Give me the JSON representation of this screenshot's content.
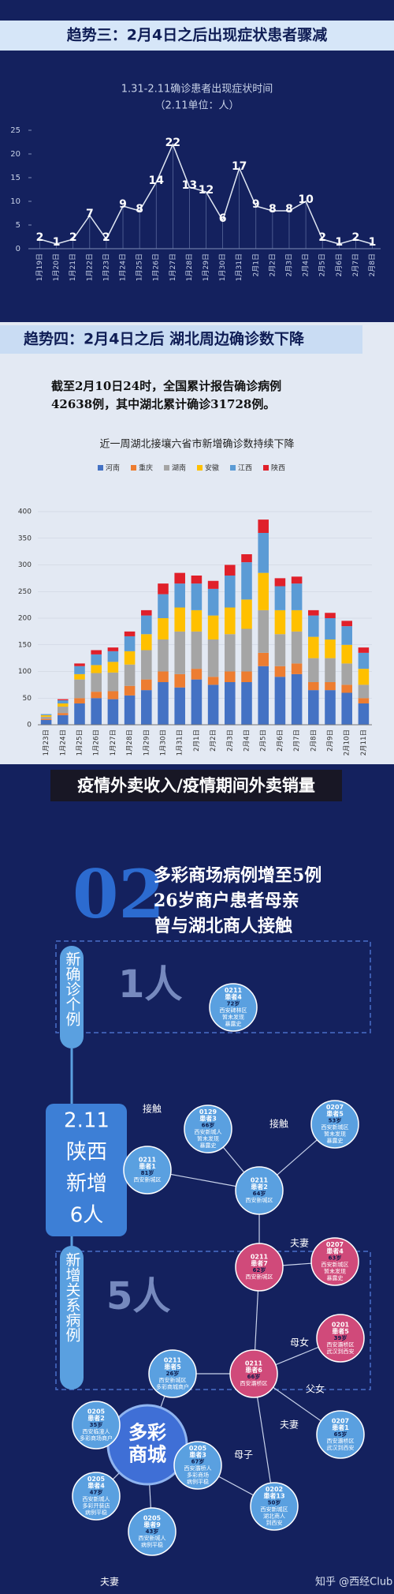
{
  "headers": [
    "趋势三：2月4日之后出现症状患者骤减",
    "趋势四：2月4日之后 湖北周边确诊数下降"
  ],
  "statement": [
    "截至2月10日24时，全国累计报告确诊病例",
    "42638例，其中湖北累计确诊31728例。"
  ],
  "chart_data": [
    {
      "type": "line",
      "title": "1.31-2.11确诊患者出现症状时间",
      "subtitle": "（2.11单位：人）",
      "categories": [
        "1月19日",
        "1月20日",
        "1月21日",
        "1月22日",
        "1月23日",
        "1月24日",
        "1月25日",
        "1月26日",
        "1月27日",
        "1月28日",
        "1月29日",
        "1月30日",
        "1月31日",
        "2月1日",
        "2月2日",
        "2月3日",
        "2月4日",
        "2月5日",
        "2月6日",
        "2月7日",
        "2月8日"
      ],
      "values": [
        2,
        1,
        2,
        7,
        2,
        9,
        8,
        14,
        22,
        13,
        12,
        6,
        17,
        9,
        8,
        8,
        10,
        2,
        1,
        2,
        1
      ],
      "color": "#dfe6f2",
      "ylim": [
        0,
        25
      ],
      "yticks": [
        0,
        5,
        10,
        15,
        20,
        25
      ]
    },
    {
      "type": "stacked_bar",
      "title": "近一周湖北接壤六省市新增确诊数持续下降",
      "categories": [
        "1月23日",
        "1月24日",
        "1月25日",
        "1月26日",
        "1月27日",
        "1月28日",
        "1月29日",
        "1月30日",
        "1月31日",
        "2月1日",
        "2月2日",
        "2月3日",
        "2月4日",
        "2月5日",
        "2月6日",
        "2月7日",
        "2月8日",
        "2月9日",
        "2月10日",
        "2月11日"
      ],
      "series": [
        {
          "name": "河南",
          "color": "#4472c4",
          "values": [
            9,
            18,
            40,
            50,
            48,
            55,
            65,
            80,
            70,
            85,
            75,
            80,
            80,
            110,
            90,
            95,
            65,
            65,
            60,
            40
          ]
        },
        {
          "name": "重庆",
          "color": "#ed7d31",
          "values": [
            2,
            4,
            10,
            12,
            15,
            18,
            20,
            20,
            25,
            20,
            15,
            20,
            20,
            25,
            20,
            20,
            15,
            15,
            15,
            10
          ]
        },
        {
          "name": "湖南",
          "color": "#a5a5a5",
          "values": [
            4,
            12,
            35,
            35,
            35,
            40,
            55,
            60,
            80,
            70,
            70,
            70,
            80,
            80,
            60,
            60,
            45,
            45,
            40,
            25
          ]
        },
        {
          "name": "安徽",
          "color": "#ffc000",
          "values": [
            3,
            6,
            10,
            15,
            20,
            25,
            30,
            40,
            45,
            40,
            45,
            50,
            55,
            70,
            45,
            40,
            40,
            35,
            35,
            30
          ]
        },
        {
          "name": "江西",
          "color": "#5b9bd5",
          "values": [
            2,
            6,
            15,
            20,
            20,
            28,
            35,
            45,
            45,
            50,
            50,
            60,
            70,
            75,
            45,
            50,
            40,
            40,
            35,
            30
          ]
        },
        {
          "name": "陕西",
          "color": "#e0202a",
          "values": [
            0,
            2,
            5,
            8,
            7,
            9,
            10,
            20,
            20,
            15,
            15,
            20,
            15,
            25,
            15,
            13,
            10,
            10,
            10,
            10
          ]
        }
      ],
      "ylim": [
        0,
        400
      ],
      "yticks": [
        0,
        50,
        100,
        150,
        200,
        250,
        300,
        350,
        400
      ],
      "legend": "top"
    }
  ],
  "banner": "疫情外卖收入/疫情期间外卖销量",
  "part2": {
    "number": "02",
    "headline": [
      "多彩商场病例增至5例",
      "26岁商户患者母亲",
      "曾与湖北商人接触"
    ],
    "new_case": "新确诊个例",
    "one": "1人",
    "total": [
      "2.11",
      "陕西",
      "新增",
      "6人"
    ],
    "related": "新增关系病例",
    "five": "5人",
    "mall": [
      "多彩",
      "商城"
    ],
    "nodes": [
      {
        "color": "#5aa0e0",
        "lines": [
          "0211",
          "患者4",
          "72岁",
          "西安碑林区",
          "暂未发现",
          "暴露史"
        ]
      },
      {
        "color": "#5aa0e0",
        "lines": [
          "0129",
          "患者3",
          "66岁",
          "西安新城人",
          "暂未发现",
          "暴露史"
        ]
      },
      {
        "color": "#5aa0e0",
        "lines": [
          "0211",
          "患者1",
          "81岁",
          "西安新城区"
        ]
      },
      {
        "color": "#5aa0e0",
        "lines": [
          "0207",
          "患者5",
          "53岁",
          "西安新城区",
          "暂未发现",
          "暴露史"
        ]
      },
      {
        "color": "#5aa0e0",
        "lines": [
          "0211",
          "患者2",
          "64岁",
          "西安新城区"
        ]
      },
      {
        "color": "#d04a7a",
        "lines": [
          "0211",
          "患者7",
          "62岁",
          "西安新城区"
        ]
      },
      {
        "color": "#d04a7a",
        "lines": [
          "0207",
          "患者4",
          "63岁",
          "西安新城区",
          "暂未发现",
          "暴露史"
        ]
      },
      {
        "color": "#d04a7a",
        "lines": [
          "0201",
          "患者5",
          "39岁",
          "西安灞桥区",
          "武汉到西安"
        ]
      },
      {
        "color": "#d04a7a",
        "lines": [
          "0211",
          "患者6",
          "66岁",
          "西安灞桥区"
        ]
      },
      {
        "color": "#5aa0e0",
        "lines": [
          "0207",
          "患者1",
          "65岁",
          "西安灞桥区",
          "武汉到西安"
        ]
      },
      {
        "color": "#5aa0e0",
        "lines": [
          "0211",
          "患者5",
          "26岁",
          "西安新城区",
          "多彩商城商户"
        ]
      },
      {
        "color": "#5aa0e0",
        "lines": [
          "0205",
          "患者2",
          "35岁",
          "西安临潼人",
          "多彩商场商户"
        ]
      },
      {
        "color": "#5aa0e0",
        "lines": [
          "0205",
          "患者3",
          "67岁",
          "西安灞桥人",
          "多彩商场",
          "病例平稳"
        ]
      },
      {
        "color": "#5aa0e0",
        "lines": [
          "0205",
          "患者4",
          "47岁",
          "西安新城人",
          "多彩开装店",
          "病例平稳"
        ]
      },
      {
        "color": "#5aa0e0",
        "lines": [
          "0205",
          "患者9",
          "43岁",
          "西安新城人",
          "病例平稳"
        ]
      },
      {
        "color": "#5aa0e0",
        "lines": [
          "0202",
          "患者13",
          "50岁",
          "西安新城区",
          "湖北商人",
          "到西安"
        ]
      }
    ],
    "relations": [
      "接触",
      "接触",
      "夫妻",
      "母女",
      "父女",
      "夫妻",
      "母子",
      "夫妻"
    ]
  },
  "footer": "知乎 @西经Club"
}
